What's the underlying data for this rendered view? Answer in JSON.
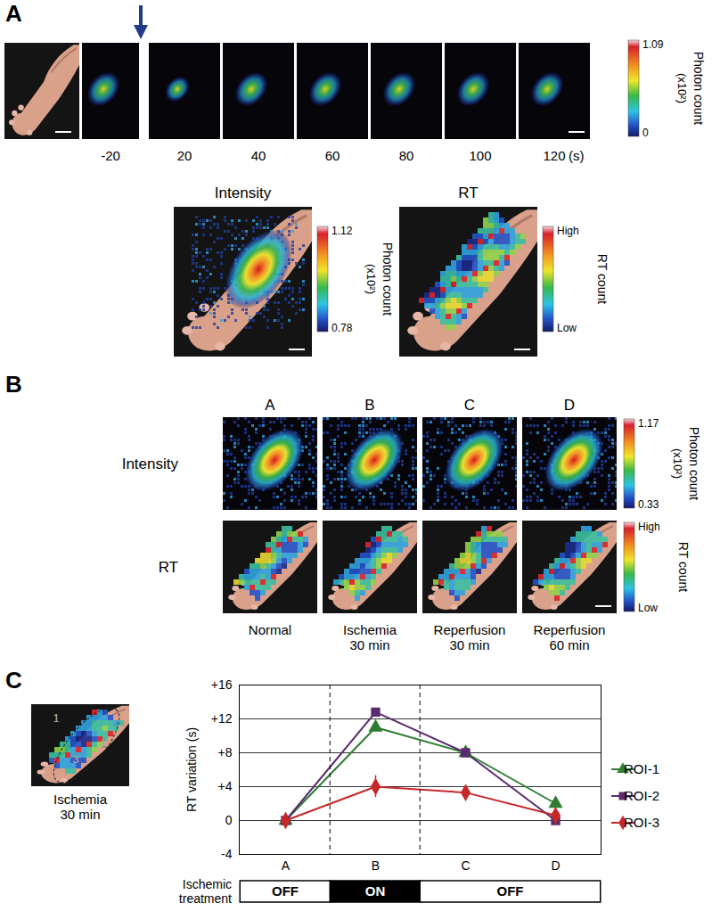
{
  "panels": {
    "A": {
      "label": "A",
      "time_ticks": [
        -20,
        20,
        40,
        60,
        80,
        100,
        120
      ],
      "time_unit": "(s)",
      "colorbar": {
        "title": "Photon count",
        "unit": "(x10²)",
        "max": 1.09,
        "min": 0
      },
      "maps": [
        {
          "title": "Intensity",
          "colorbar": {
            "title": "Photon count",
            "unit": "(x10²)",
            "max": 1.12,
            "min": 0.78
          }
        },
        {
          "title": "RT",
          "colorbar": {
            "title": "RT count",
            "max": "High",
            "min": "Low"
          }
        }
      ]
    },
    "B": {
      "label": "B",
      "columns": [
        {
          "letter": "A",
          "caption": "Normal"
        },
        {
          "letter": "B",
          "caption": "Ischemia 30 min"
        },
        {
          "letter": "C",
          "caption": "Reperfusion 30 min"
        },
        {
          "letter": "D",
          "caption": "Reperfusion 60 min"
        }
      ],
      "rows": [
        {
          "title": "Intensity",
          "colorbar": {
            "title": "Photon count",
            "unit": "(x10²)",
            "max": 1.17,
            "min": 0.33
          }
        },
        {
          "title": "RT",
          "colorbar": {
            "title": "RT count",
            "max": "High",
            "min": "Low"
          }
        }
      ]
    },
    "C": {
      "label": "C",
      "inset_caption": "Ischemia 30 min",
      "roi_labels": [
        "1",
        "2",
        "3"
      ]
    }
  },
  "chart_data": {
    "type": "line",
    "categories": [
      "A",
      "B",
      "C",
      "D"
    ],
    "ylabel": "RT variation (s)",
    "ylim": [
      -4,
      16
    ],
    "yticks": [
      {
        "value": 16,
        "label": "+16"
      },
      {
        "value": 12,
        "label": "+12"
      },
      {
        "value": 8,
        "label": "+8"
      },
      {
        "value": 4,
        "label": "+4"
      },
      0,
      -4
    ],
    "grid": true,
    "legend": "right",
    "series": [
      {
        "name": "ROI-1",
        "color": "#2e7d32",
        "marker": "triangle",
        "values": [
          0,
          11,
          8,
          2
        ]
      },
      {
        "name": "ROI-2",
        "color": "#5b2a6e",
        "marker": "square",
        "values": [
          0,
          12.8,
          8,
          0
        ]
      },
      {
        "name": "ROI-3",
        "color": "#c62828",
        "marker": "diamond",
        "values": [
          0,
          4,
          3.3,
          0.6
        ],
        "error": [
          0.8,
          1.3,
          null,
          null
        ]
      }
    ],
    "treatment": {
      "label": "Ischemic treatment",
      "segments": [
        {
          "text": "OFF",
          "categories": [
            "A"
          ],
          "color": "#ffffff"
        },
        {
          "text": "ON",
          "categories": [
            "B"
          ],
          "color": "#000000"
        },
        {
          "text": "OFF",
          "categories": [
            "C",
            "D"
          ],
          "color": "#ffffff"
        }
      ]
    }
  }
}
